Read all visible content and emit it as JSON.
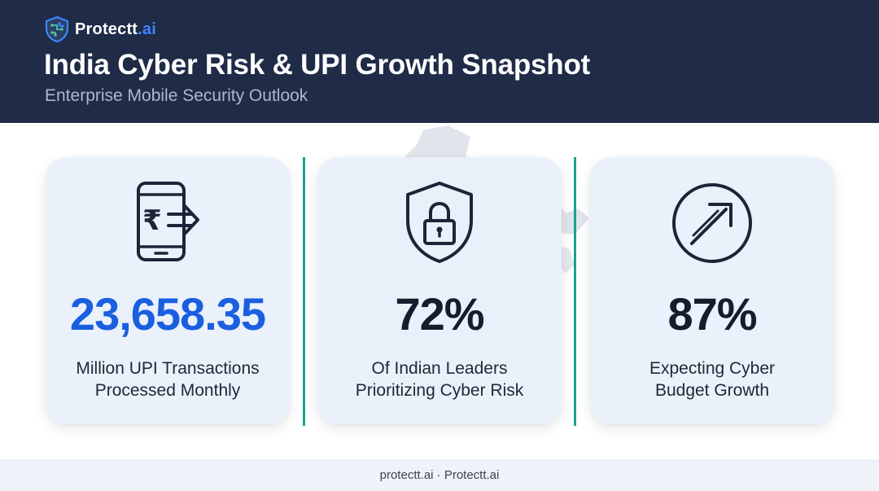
{
  "brand": {
    "name": "Protectt",
    "tld": ".ai"
  },
  "header": {
    "title": "India Cyber Risk & UPI Growth Snapshot",
    "subtitle": "Enterprise Mobile Security Outlook"
  },
  "colors": {
    "header_bg": "#1f2b47",
    "accent_blue": "#1a5fe0",
    "divider_teal": "#1aa38f",
    "card_bg": "#eaf0fa"
  },
  "stats": [
    {
      "icon": "mobile-rupee-transfer-icon",
      "value": "23,658.35",
      "label_line1": "Million UPI Transactions",
      "label_line2": "Processed Monthly"
    },
    {
      "icon": "shield-lock-icon",
      "value": "72%",
      "label_line1": "Of Indian Leaders",
      "label_line2": "Prioritizing Cyber Risk"
    },
    {
      "icon": "growth-arrow-circle-icon",
      "value": "87%",
      "label_line1": "Expecting Cyber",
      "label_line2": "Budget Growth"
    }
  ],
  "footer": {
    "text": "protectt.ai · Protectt.ai"
  }
}
